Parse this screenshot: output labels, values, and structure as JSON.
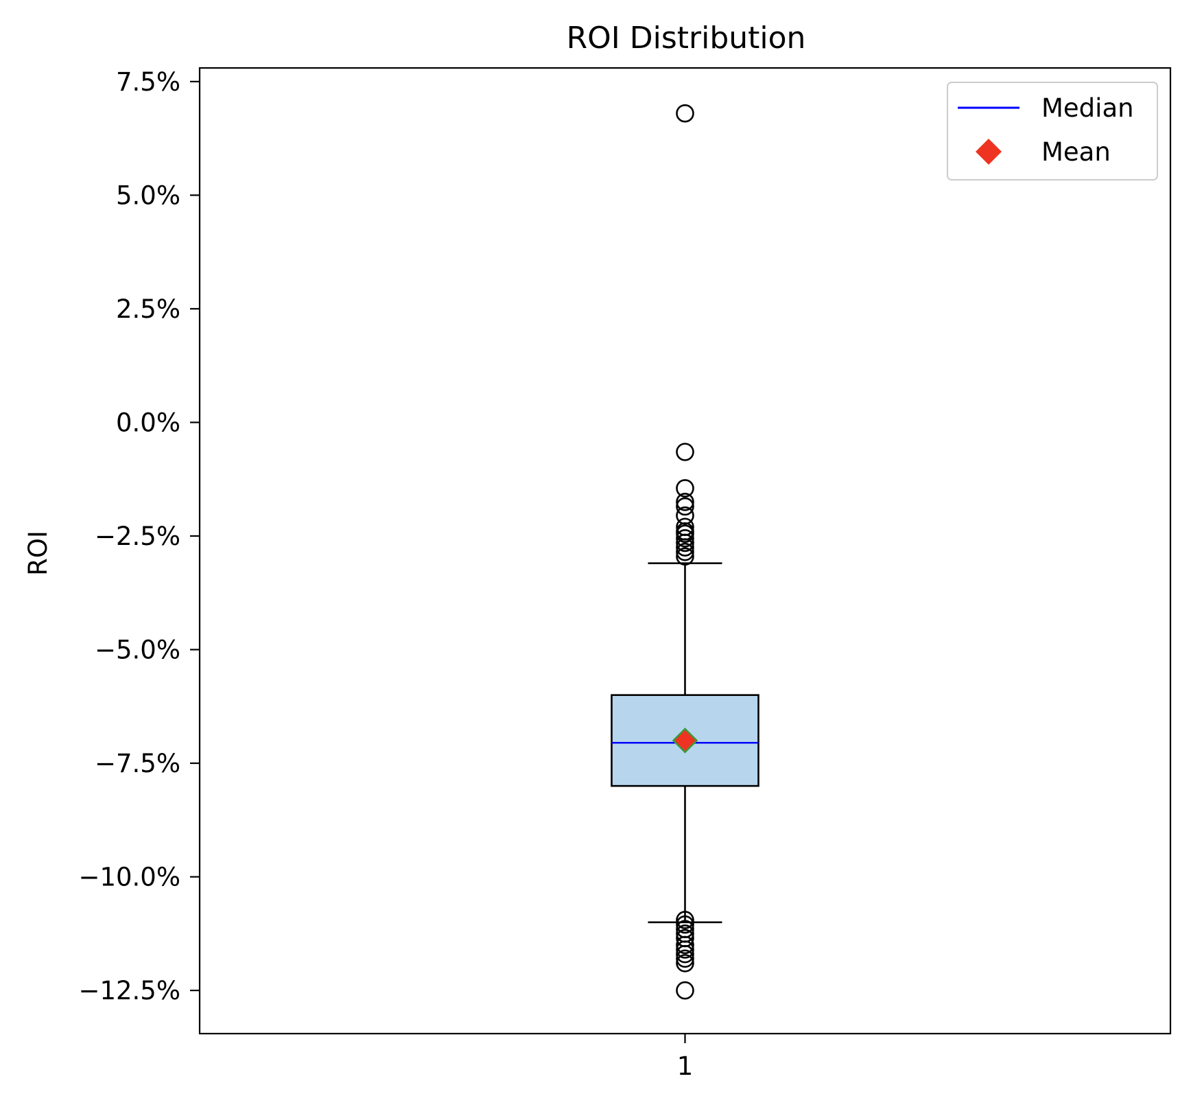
{
  "chart_data": {
    "type": "box",
    "title": "ROI Distribution",
    "xlabel": "",
    "ylabel": "ROI",
    "x_tick_labels": [
      "1"
    ],
    "y_ticks": [
      "7.5%",
      "5.0%",
      "2.5%",
      "0.0%",
      "−2.5%",
      "−5.0%",
      "−7.5%",
      "−10.0%",
      "−12.5%"
    ],
    "y_tick_values": [
      7.5,
      5.0,
      2.5,
      0.0,
      -2.5,
      -5.0,
      -7.5,
      -10.0,
      -12.5
    ],
    "ylim": [
      -13.45,
      7.8
    ],
    "y_unit": "%",
    "grid": false,
    "legend": {
      "placement": "top-right",
      "entries": [
        {
          "label": "Median",
          "marker": "line",
          "color": "#0000ff"
        },
        {
          "label": "Mean",
          "marker": "diamond",
          "color": "#ee3322"
        }
      ]
    },
    "boxes": [
      {
        "category": "1",
        "whisker_low": -11.0,
        "q1": -8.0,
        "median": -7.05,
        "q3": -6.0,
        "whisker_high": -3.1,
        "mean": -7.0,
        "fliers": [
          6.8,
          -0.65,
          -1.45,
          -1.75,
          -1.85,
          -2.05,
          -2.3,
          -2.4,
          -2.45,
          -2.55,
          -2.65,
          -2.75,
          -2.85,
          -2.95,
          -10.95,
          -11.05,
          -11.15,
          -11.25,
          -11.35,
          -11.5,
          -11.6,
          -11.7,
          -11.8,
          -11.9,
          -12.5
        ]
      }
    ],
    "colors": {
      "box_fill": "#b7d6ee",
      "median_line": "#0000ff",
      "mean_marker": "#ee3322",
      "mean_marker_edge": "#3c9a3c",
      "lines": "#000000"
    }
  }
}
